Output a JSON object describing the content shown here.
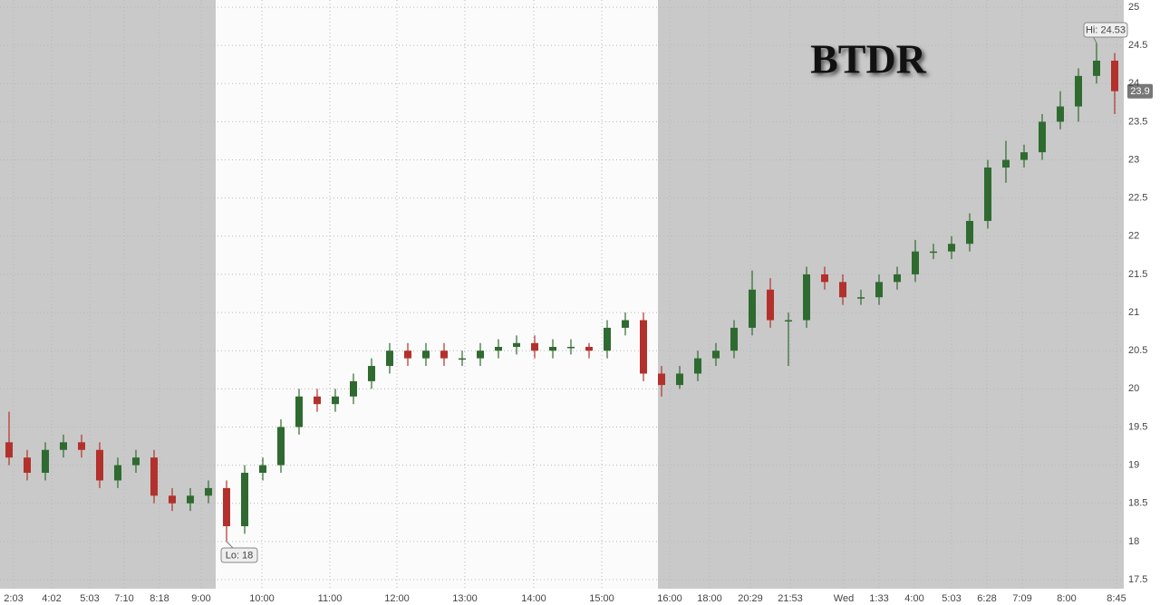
{
  "chart_data": {
    "type": "candlestick",
    "title": "BTDR",
    "open": [
      19.3,
      19.1,
      18.9,
      19.2,
      19.3,
      19.2,
      18.8,
      19.0,
      19.1,
      18.6,
      18.5,
      18.6,
      18.7,
      18.2,
      18.9,
      19.0,
      19.5,
      19.9,
      19.8,
      19.9,
      20.1,
      20.3,
      20.5,
      20.4,
      20.5,
      20.4,
      20.4,
      20.5,
      20.55,
      20.6,
      20.5,
      20.55,
      20.55,
      20.5,
      20.8,
      20.9,
      20.2,
      20.05,
      20.2,
      20.4,
      20.5,
      20.8,
      21.3,
      20.9,
      20.9,
      21.5,
      21.4,
      21.2,
      21.2,
      21.4,
      21.5,
      21.8,
      21.8,
      21.9,
      22.2,
      22.9,
      23.0,
      23.1,
      23.5,
      23.7,
      24.1,
      24.3
    ],
    "high": [
      19.7,
      19.2,
      19.3,
      19.4,
      19.4,
      19.3,
      19.1,
      19.2,
      19.2,
      18.7,
      18.7,
      18.8,
      18.8,
      19.0,
      19.1,
      19.6,
      20.0,
      20.0,
      20.0,
      20.2,
      20.4,
      20.6,
      20.6,
      20.6,
      20.6,
      20.5,
      20.6,
      20.65,
      20.7,
      20.7,
      20.65,
      20.65,
      20.6,
      20.9,
      21.0,
      21.0,
      20.3,
      20.3,
      20.5,
      20.6,
      20.9,
      21.55,
      21.45,
      21.0,
      21.6,
      21.6,
      21.5,
      21.3,
      21.5,
      21.6,
      21.95,
      21.9,
      22.0,
      22.3,
      23.0,
      23.25,
      23.2,
      23.6,
      23.9,
      24.2,
      24.53,
      24.4
    ],
    "low": [
      19.0,
      18.8,
      18.8,
      19.1,
      19.1,
      18.7,
      18.7,
      18.9,
      18.5,
      18.4,
      18.4,
      18.5,
      18.0,
      18.1,
      18.8,
      18.9,
      19.4,
      19.7,
      19.7,
      19.8,
      20.0,
      20.2,
      20.3,
      20.3,
      20.3,
      20.3,
      20.3,
      20.4,
      20.45,
      20.4,
      20.4,
      20.45,
      20.4,
      20.4,
      20.7,
      20.1,
      19.9,
      20.0,
      20.1,
      20.3,
      20.4,
      20.7,
      20.8,
      20.3,
      20.8,
      21.3,
      21.1,
      21.1,
      21.1,
      21.3,
      21.4,
      21.7,
      21.7,
      21.8,
      22.1,
      22.7,
      22.9,
      23.0,
      23.4,
      23.5,
      24.0,
      23.6
    ],
    "close": [
      19.1,
      18.9,
      19.2,
      19.3,
      19.2,
      18.8,
      19.0,
      19.1,
      18.6,
      18.5,
      18.6,
      18.7,
      18.2,
      18.9,
      19.0,
      19.5,
      19.9,
      19.8,
      19.9,
      20.1,
      20.3,
      20.5,
      20.4,
      20.5,
      20.4,
      20.4,
      20.5,
      20.55,
      20.6,
      20.5,
      20.55,
      20.55,
      20.5,
      20.8,
      20.9,
      20.2,
      20.05,
      20.2,
      20.4,
      20.5,
      20.8,
      21.3,
      20.9,
      20.9,
      21.5,
      21.4,
      21.2,
      21.2,
      21.4,
      21.5,
      21.8,
      21.8,
      21.9,
      22.2,
      22.9,
      23.0,
      23.1,
      23.5,
      23.7,
      24.1,
      24.3,
      23.9
    ],
    "up_color": "#2f6b30",
    "down_color": "#b3312c",
    "xlim": [
      -0.5,
      61.5
    ],
    "xticks": [
      {
        "value": 0.25,
        "label": "2:03"
      },
      {
        "value": 2.35,
        "label": "4:02"
      },
      {
        "value": 4.45,
        "label": "5:03"
      },
      {
        "value": 6.35,
        "label": "7:10"
      },
      {
        "value": 8.3,
        "label": "8:18"
      },
      {
        "value": 10.6,
        "label": "9:00"
      },
      {
        "value": 13.95,
        "label": "10:00"
      },
      {
        "value": 17.7,
        "label": "11:00"
      },
      {
        "value": 21.4,
        "label": "12:00"
      },
      {
        "value": 25.15,
        "label": "13:00"
      },
      {
        "value": 28.95,
        "label": "14:00"
      },
      {
        "value": 32.7,
        "label": "15:00"
      },
      {
        "value": 36.45,
        "label": "16:00"
      },
      {
        "value": 38.65,
        "label": "18:00"
      },
      {
        "value": 40.9,
        "label": "20:29"
      },
      {
        "value": 43.1,
        "label": "21:53"
      },
      {
        "value": 46.05,
        "label": "Wed"
      },
      {
        "value": 48,
        "label": "1:33"
      },
      {
        "value": 49.95,
        "label": "4:00"
      },
      {
        "value": 52,
        "label": "5:03"
      },
      {
        "value": 53.95,
        "label": "6:28"
      },
      {
        "value": 55.9,
        "label": "7:09"
      },
      {
        "value": 58.35,
        "label": "8:00"
      },
      {
        "value": 61.1,
        "label": "8:45"
      }
    ],
    "ylim": [
      17.5,
      25
    ],
    "yticks": [
      17.5,
      18,
      18.5,
      19,
      19.5,
      20,
      20.5,
      21,
      21.5,
      22,
      22.5,
      23,
      23.5,
      24,
      24.5,
      25
    ],
    "grid": true,
    "hi_label": "Hi: 24.53",
    "lo_label": "Lo: 18",
    "last_price": 23.9
  }
}
